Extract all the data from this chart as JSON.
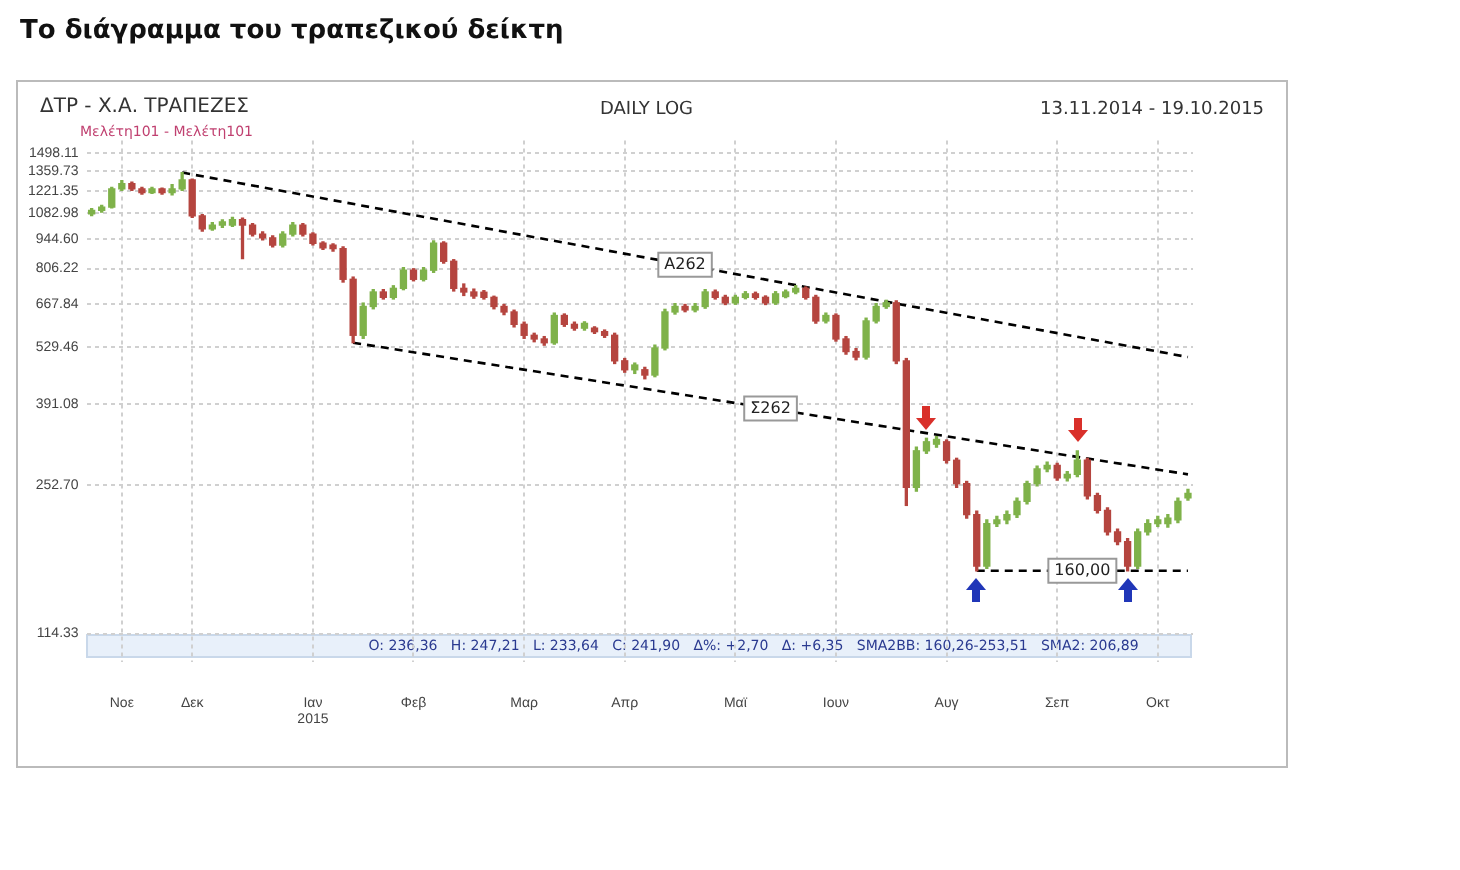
{
  "chart_data": {
    "type": "candlestick",
    "title": "Το διάγραμμα του τραπεζικού δείκτη",
    "subtitle": "ΔΤΡ - Χ.Α. ΤΡΑΠΕΖΕΣ",
    "annotations": [
      "Μελέτη101 - Μελέτη101",
      "DAILY LOG",
      "13.11.2014 - 19.10.2015",
      "O: 236,36   H: 247,21   L: 233,64   C: 241,90   Δ%: +2,70   Δ: +6,35   SMA2BB: 160,26-253,51   SMA2: 206,89"
    ],
    "categories": [
      null,
      null,
      null,
      "Νοε",
      null,
      null,
      null,
      null,
      null,
      null,
      "Δεκ",
      null,
      null,
      null,
      null,
      null,
      null,
      null,
      null,
      null,
      null,
      null,
      "Ιαν\n2015",
      null,
      null,
      null,
      null,
      null,
      null,
      null,
      null,
      null,
      "Φεβ",
      null,
      null,
      null,
      null,
      null,
      null,
      null,
      null,
      null,
      null,
      "Μαρ",
      null,
      null,
      null,
      null,
      null,
      null,
      null,
      null,
      null,
      "Απρ",
      null,
      null,
      null,
      null,
      null,
      null,
      null,
      null,
      null,
      null,
      "Μαϊ",
      null,
      null,
      null,
      null,
      null,
      null,
      null,
      null,
      null,
      "Ιουν",
      null,
      null,
      null,
      null,
      null,
      null,
      null,
      null,
      null,
      null,
      "Αυγ",
      null,
      null,
      null,
      null,
      null,
      null,
      null,
      null,
      null,
      null,
      "Σεπ",
      null,
      null,
      null,
      null,
      null,
      null,
      null,
      null,
      null,
      "Οκτ",
      null,
      null,
      null
    ],
    "ohlc": [
      [
        1080,
        1110,
        1070,
        1100
      ],
      [
        1100,
        1130,
        1090,
        1120
      ],
      [
        1120,
        1245,
        1115,
        1234
      ],
      [
        1234,
        1290,
        1225,
        1270
      ],
      [
        1270,
        1280,
        1225,
        1234
      ],
      [
        1234,
        1245,
        1200,
        1211
      ],
      [
        1211,
        1245,
        1205,
        1234
      ],
      [
        1234,
        1240,
        1200,
        1211
      ],
      [
        1211,
        1262,
        1195,
        1234
      ],
      [
        1234,
        1347,
        1225,
        1295
      ],
      [
        1295,
        1300,
        1060,
        1068
      ],
      [
        1068,
        1075,
        985,
        997
      ],
      [
        997,
        1030,
        990,
        1017
      ],
      [
        1017,
        1045,
        1005,
        1035
      ],
      [
        1017,
        1060,
        1010,
        1047
      ],
      [
        1047,
        1055,
        850,
        1017
      ],
      [
        1017,
        1025,
        960,
        969
      ],
      [
        969,
        980,
        940,
        950
      ],
      [
        950,
        960,
        905,
        914
      ],
      [
        914,
        980,
        905,
        969
      ],
      [
        969,
        1030,
        960,
        1017
      ],
      [
        1017,
        1025,
        960,
        969
      ],
      [
        969,
        975,
        915,
        923
      ],
      [
        923,
        930,
        893,
        900
      ],
      [
        914,
        920,
        885,
        897
      ],
      [
        897,
        905,
        750,
        761
      ],
      [
        761,
        770,
        542,
        564
      ],
      [
        564,
        670,
        555,
        658
      ],
      [
        658,
        720,
        650,
        711
      ],
      [
        711,
        720,
        685,
        691
      ],
      [
        691,
        735,
        685,
        725
      ],
      [
        725,
        810,
        720,
        799
      ],
      [
        799,
        805,
        755,
        761
      ],
      [
        761,
        810,
        755,
        799
      ],
      [
        799,
        935,
        790,
        923
      ],
      [
        923,
        930,
        830,
        838
      ],
      [
        838,
        845,
        715,
        725
      ],
      [
        725,
        742,
        698,
        711
      ],
      [
        711,
        722,
        688,
        696
      ],
      [
        710,
        716,
        685,
        691
      ],
      [
        691,
        695,
        650,
        658
      ],
      [
        658,
        665,
        630,
        639
      ],
      [
        639,
        645,
        590,
        598
      ],
      [
        598,
        605,
        555,
        564
      ],
      [
        564,
        570,
        545,
        553
      ],
      [
        553,
        560,
        535,
        542
      ],
      [
        542,
        635,
        538,
        627
      ],
      [
        627,
        632,
        592,
        598
      ],
      [
        598,
        605,
        580,
        586
      ],
      [
        586,
        606,
        580,
        601
      ],
      [
        586,
        590,
        570,
        575
      ],
      [
        575,
        580,
        558,
        564
      ],
      [
        564,
        570,
        485,
        492
      ],
      [
        492,
        498,
        463,
        469
      ],
      [
        469,
        486,
        460,
        481
      ],
      [
        469,
        475,
        447,
        456
      ],
      [
        456,
        535,
        452,
        527
      ],
      [
        527,
        648,
        522,
        639
      ],
      [
        639,
        668,
        632,
        658
      ],
      [
        658,
        665,
        640,
        646
      ],
      [
        646,
        668,
        640,
        658
      ],
      [
        658,
        720,
        652,
        711
      ],
      [
        711,
        718,
        685,
        691
      ],
      [
        691,
        698,
        665,
        671
      ],
      [
        671,
        698,
        666,
        691
      ],
      [
        691,
        712,
        686,
        704
      ],
      [
        704,
        710,
        685,
        691
      ],
      [
        691,
        696,
        665,
        671
      ],
      [
        671,
        712,
        666,
        704
      ],
      [
        694,
        718,
        690,
        711
      ],
      [
        711,
        735,
        705,
        725
      ],
      [
        725,
        730,
        685,
        691
      ],
      [
        691,
        698,
        602,
        609
      ],
      [
        609,
        635,
        603,
        627
      ],
      [
        627,
        632,
        547,
        553
      ],
      [
        553,
        560,
        510,
        517
      ],
      [
        517,
        525,
        495,
        502
      ],
      [
        502,
        618,
        497,
        609
      ],
      [
        609,
        668,
        603,
        658
      ],
      [
        658,
        680,
        652,
        671
      ],
      [
        671,
        678,
        485,
        492
      ],
      [
        492,
        498,
        227,
        250
      ],
      [
        250,
        310,
        245,
        304
      ],
      [
        304,
        325,
        300,
        319
      ],
      [
        315,
        328,
        310,
        323
      ],
      [
        319,
        322,
        285,
        289
      ],
      [
        289,
        292,
        250,
        255
      ],
      [
        255,
        258,
        212,
        216
      ],
      [
        216,
        220,
        160,
        164
      ],
      [
        164,
        210,
        162,
        206
      ],
      [
        206,
        214,
        203,
        210
      ],
      [
        210,
        220,
        206,
        216
      ],
      [
        216,
        236,
        213,
        232
      ],
      [
        232,
        258,
        229,
        255
      ],
      [
        255,
        280,
        252,
        276
      ],
      [
        276,
        286,
        272,
        281
      ],
      [
        281,
        284,
        260,
        263
      ],
      [
        263,
        272,
        259,
        268
      ],
      [
        268,
        304,
        265,
        289
      ],
      [
        289,
        292,
        235,
        239
      ],
      [
        239,
        242,
        218,
        221
      ],
      [
        221,
        224,
        194,
        197
      ],
      [
        197,
        200,
        184,
        187
      ],
      [
        187,
        190,
        160,
        164
      ],
      [
        164,
        200,
        162,
        197
      ],
      [
        197,
        210,
        194,
        206
      ],
      [
        206,
        214,
        203,
        210
      ],
      [
        206,
        216,
        202,
        212
      ],
      [
        210,
        236,
        207,
        232
      ],
      [
        236.36,
        247.21,
        233.64,
        241.9
      ]
    ],
    "colors": [
      "#7fb24a",
      "#7fb24a",
      "#7fb24a",
      "#7fb24a",
      "#b5453f",
      "#b5453f",
      "#7fb24a",
      "#b5453f",
      "#7fb24a",
      "#7fb24a",
      "#b5453f",
      "#b5453f",
      "#7fb24a",
      "#7fb24a",
      "#7fb24a",
      "#b5453f",
      "#b5453f",
      "#b5453f",
      "#b5453f",
      "#7fb24a",
      "#7fb24a",
      "#b5453f",
      "#b5453f",
      "#b5453f",
      "#b5453f",
      "#b5453f",
      "#b5453f",
      "#7fb24a",
      "#7fb24a",
      "#b5453f",
      "#7fb24a",
      "#7fb24a",
      "#b5453f",
      "#7fb24a",
      "#7fb24a",
      "#b5453f",
      "#b5453f",
      "#b5453f",
      "#b5453f",
      "#b5453f",
      "#b5453f",
      "#b5453f",
      "#b5453f",
      "#b5453f",
      "#b5453f",
      "#b5453f",
      "#7fb24a",
      "#b5453f",
      "#b5453f",
      "#7fb24a",
      "#b5453f",
      "#b5453f",
      "#b5453f",
      "#b5453f",
      "#7fb24a",
      "#b5453f",
      "#7fb24a",
      "#7fb24a",
      "#7fb24a",
      "#b5453f",
      "#7fb24a",
      "#7fb24a",
      "#b5453f",
      "#b5453f",
      "#7fb24a",
      "#7fb24a",
      "#b5453f",
      "#b5453f",
      "#7fb24a",
      "#7fb24a",
      "#7fb24a",
      "#b5453f",
      "#b5453f",
      "#7fb24a",
      "#b5453f",
      "#b5453f",
      "#b5453f",
      "#7fb24a",
      "#7fb24a",
      "#7fb24a",
      "#b5453f",
      "#b5453f",
      "#7fb24a",
      "#7fb24a",
      "#7fb24a",
      "#b5453f",
      "#b5453f",
      "#b5453f",
      "#b5453f",
      "#7fb24a",
      "#7fb24a",
      "#7fb24a",
      "#7fb24a",
      "#7fb24a",
      "#7fb24a",
      "#7fb24a",
      "#b5453f",
      "#7fb24a",
      "#7fb24a",
      "#b5453f",
      "#b5453f",
      "#b5453f",
      "#b5453f",
      "#b5453f",
      "#7fb24a",
      "#7fb24a",
      "#7fb24a",
      "#7fb24a",
      "#7fb24a",
      "#7fb24a"
    ],
    "series": [
      {
        "type": "line",
        "name": "A262",
        "color": "#000000",
        "line_style": "dashed",
        "values": [
          null,
          null,
          null,
          null,
          null,
          null,
          null,
          null,
          null,
          1347,
          null,
          null,
          null,
          null,
          null,
          null,
          null,
          null,
          null,
          null,
          null,
          null,
          null,
          null,
          null,
          null,
          null,
          null,
          null,
          null,
          null,
          null,
          null,
          null,
          null,
          null,
          null,
          null,
          null,
          null,
          null,
          null,
          null,
          null,
          null,
          null,
          null,
          null,
          null,
          null,
          null,
          null,
          null,
          null,
          null,
          null,
          null,
          null,
          null,
          null,
          null,
          null,
          null,
          null,
          null,
          null,
          null,
          null,
          null,
          null,
          null,
          null,
          null,
          null,
          null,
          null,
          null,
          null,
          null,
          null,
          null,
          null,
          null,
          null,
          null,
          null,
          null,
          null,
          null,
          null,
          null,
          null,
          null,
          null,
          null,
          null,
          null,
          null,
          null,
          null,
          null,
          null,
          null,
          null,
          null,
          null,
          null,
          null,
          null,
          502
        ]
      },
      {
        "type": "line",
        "name": "Σ262",
        "color": "#000000",
        "line_style": "dashed",
        "values": [
          null,
          null,
          null,
          null,
          null,
          null,
          null,
          null,
          null,
          null,
          null,
          null,
          null,
          null,
          null,
          null,
          null,
          null,
          null,
          null,
          null,
          null,
          null,
          null,
          null,
          null,
          542,
          null,
          null,
          null,
          null,
          null,
          null,
          null,
          null,
          null,
          null,
          null,
          null,
          null,
          null,
          null,
          null,
          null,
          null,
          null,
          null,
          null,
          null,
          null,
          null,
          null,
          null,
          null,
          null,
          null,
          null,
          null,
          null,
          null,
          null,
          null,
          null,
          null,
          null,
          null,
          null,
          null,
          null,
          null,
          null,
          null,
          null,
          null,
          null,
          null,
          null,
          null,
          null,
          null,
          null,
          null,
          null,
          null,
          null,
          null,
          null,
          null,
          null,
          null,
          null,
          null,
          null,
          null,
          null,
          null,
          null,
          null,
          null,
          null,
          null,
          null,
          null,
          null,
          null,
          null,
          null,
          null,
          null,
          268
        ]
      },
      {
        "type": "line",
        "name": "160,00",
        "color": "#000000",
        "line_style": "dashed",
        "values": [
          null,
          null,
          null,
          null,
          null,
          null,
          null,
          null,
          null,
          null,
          null,
          null,
          null,
          null,
          null,
          null,
          null,
          null,
          null,
          null,
          null,
          null,
          null,
          null,
          null,
          null,
          null,
          null,
          null,
          null,
          null,
          null,
          null,
          null,
          null,
          null,
          null,
          null,
          null,
          null,
          null,
          null,
          null,
          null,
          null,
          null,
          null,
          null,
          null,
          null,
          null,
          null,
          null,
          null,
          null,
          null,
          null,
          null,
          null,
          null,
          null,
          null,
          null,
          null,
          null,
          null,
          null,
          null,
          null,
          null,
          null,
          null,
          null,
          null,
          null,
          null,
          null,
          null,
          null,
          null,
          null,
          null,
          null,
          null,
          null,
          null,
          null,
          null,
          160,
          null,
          null,
          null,
          null,
          null,
          null,
          null,
          null,
          null,
          null,
          null,
          null,
          null,
          null,
          null,
          null,
          null,
          null,
          null,
          null,
          160
        ]
      }
    ],
    "log": true,
    "ylim": [
      98,
      1600
    ],
    "yticks": [
      {
        "value": 114.33,
        "label": "114.33"
      },
      {
        "value": 252.7,
        "label": "252.70"
      },
      391.08,
      529.46,
      667.84,
      806.22,
      {
        "value": 944.6,
        "label": "944.60"
      },
      1082.98,
      1221.35,
      1359.73,
      1498.11
    ],
    "grid": true,
    "legend": false
  }
}
